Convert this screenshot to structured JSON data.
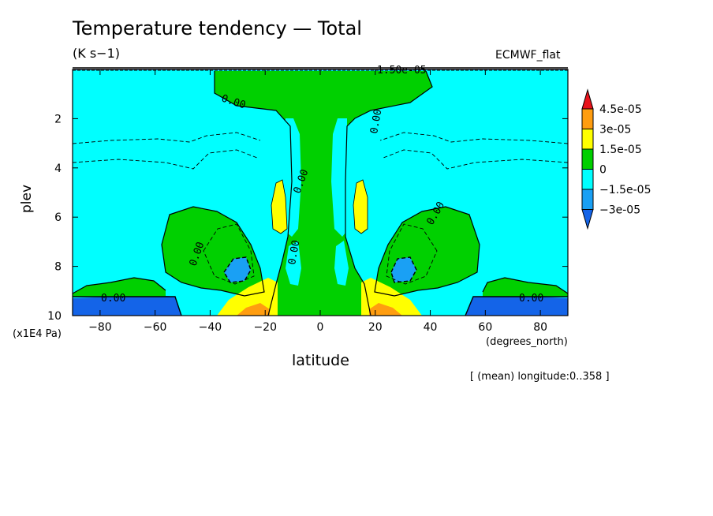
{
  "header": {
    "title": "Temperature tendency — Total",
    "units": "(K s−1)",
    "source": "ECMWF_flat"
  },
  "footnote": "[ (mean) longitude:0..358 ]",
  "chart_data": {
    "type": "heatmap",
    "title": "Temperature tendency — Total",
    "xlabel": "latitude",
    "ylabel": "plev",
    "x_units": "(degrees_north)",
    "y_units": "(x1E4 Pa)",
    "xlim": [
      -90,
      90
    ],
    "ylim": [
      10,
      0
    ],
    "x_ticks": [
      -80,
      -60,
      -40,
      -20,
      0,
      20,
      40,
      60,
      80
    ],
    "y_ticks": [
      2,
      4,
      6,
      8,
      10
    ],
    "colorbar": {
      "levels": [
        "4.5e-05",
        "3e-05",
        "1.5e-05",
        "0",
        "−1.5e-05",
        "−3e-05"
      ],
      "bin_colors": [
        "#e8121a",
        "#ff9d10",
        "#ffff00",
        "#00d000",
        "#00ffff",
        "#1aa0f4",
        "#1464e8"
      ]
    },
    "contour_labels": [
      "0.00",
      "0.00",
      "0.00",
      "0.00",
      "0.00",
      "0.00",
      "0.00",
      "0.00",
      "1.50e-05"
    ],
    "annotations": [
      "0.00",
      "1.50e-05"
    ]
  }
}
